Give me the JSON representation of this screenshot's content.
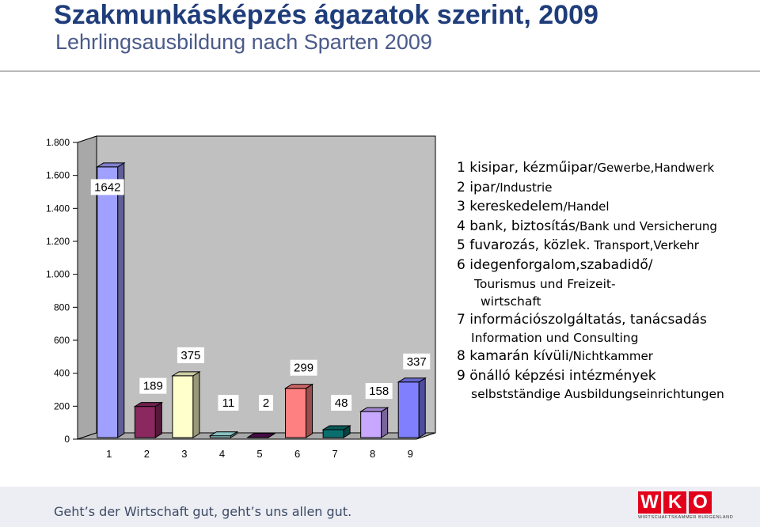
{
  "header": {
    "title": "Szakmunkásképzés ágazatok szerint, 2009",
    "subtitle": "Lehrlingsausbildung nach Sparten 2009"
  },
  "chart_data": {
    "type": "bar",
    "categories": [
      "1",
      "2",
      "3",
      "4",
      "5",
      "6",
      "7",
      "8",
      "9"
    ],
    "values": [
      1642,
      189,
      375,
      11,
      2,
      299,
      48,
      158,
      337
    ],
    "data_labels": [
      "1642",
      "189",
      "375",
      "11",
      "2",
      "299",
      "48",
      "158",
      "337"
    ],
    "y_ticks": [
      0,
      200,
      400,
      600,
      800,
      1000,
      1200,
      1400,
      1600,
      1800
    ],
    "y_tick_labels": [
      "0",
      "200",
      "400",
      "600",
      "800",
      "1.000",
      "1.200",
      "1.400",
      "1.600",
      "1.800"
    ],
    "ylim": [
      0,
      1800
    ],
    "colors": [
      "#a0a0ff",
      "#8b2860",
      "#ffffcc",
      "#aaf0f0",
      "#5b0d5b",
      "#ff8080",
      "#0a6e6e",
      "#c8a8ff",
      "#8080ff"
    ],
    "wall_color": "#c0c0c0",
    "floor_color": "#a8a8a8",
    "grid": false
  },
  "legend": [
    {
      "num": "1",
      "hu": "kisipar, kézműipar",
      "de": "/Gewerbe,Handwerk"
    },
    {
      "num": "2",
      "hu": "ipar",
      "de": "/Industrie"
    },
    {
      "num": "3",
      "hu": "kereskedelem",
      "de": "/Handel"
    },
    {
      "num": "4",
      "hu": "bank, biztosítás",
      "de": "/Bank und Versicherung"
    },
    {
      "num": "5",
      "hu": "fuvarozás, közlek.",
      "de": " Transport,Verkehr"
    },
    {
      "num": "6",
      "hu": "idegenforgalom,szabadidő/",
      "de": ""
    },
    {
      "num": "7",
      "hu": "információszolgáltatás, tanácsadás",
      "de": ""
    },
    {
      "num": "8",
      "hu": "kamarán kívüli",
      "de": "/Nichtkammer"
    },
    {
      "num": "9",
      "hu": "önálló képzési intézmények",
      "de": ""
    }
  ],
  "legend_sub": {
    "tourism_1": "Tourismus und Freizeit-",
    "tourism_2": "wirtschaft",
    "info": "Information und Consulting",
    "self": "selbstständige Ausbildungseinrichtungen"
  },
  "footer": {
    "slogan": "Geht’s der Wirtschaft gut, geht’s uns allen gut.",
    "logo_letters": [
      "W",
      "K",
      "O"
    ],
    "logo_tagline": "WIRTSCHAFTSKAMMER BURGENLAND"
  }
}
